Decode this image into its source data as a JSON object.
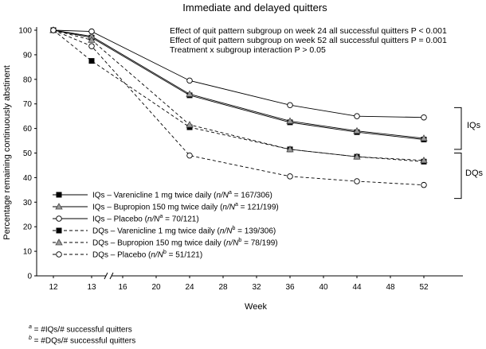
{
  "chart_data": {
    "type": "line",
    "title": "Immediate and delayed quitters",
    "xlabel": "Week",
    "ylabel": "Percentage remaining continuously abstinent",
    "ylim": [
      0,
      100
    ],
    "yticks": [
      0,
      10,
      20,
      30,
      40,
      50,
      60,
      70,
      80,
      90,
      100
    ],
    "xticks": [
      12,
      13,
      16,
      20,
      24,
      28,
      32,
      36,
      40,
      44,
      48,
      52
    ],
    "axis_break": "between 13 and 16",
    "series": [
      {
        "name": "IQs – Varenicline 1 mg twice daily",
        "n_text": "n/N",
        "n_sup": "a",
        "n_value": " = 167/306",
        "marker": "square-filled",
        "dashed": false,
        "x": [
          12,
          13,
          24,
          36,
          44,
          52
        ],
        "values": [
          100,
          97,
          73.5,
          62.5,
          58.5,
          55.5
        ]
      },
      {
        "name": "IQs – Bupropion 150 mg twice daily",
        "n_text": "n/N",
        "n_sup": "a",
        "n_value": " = 121/199",
        "marker": "triangle-gray",
        "dashed": false,
        "x": [
          12,
          13,
          24,
          36,
          44,
          52
        ],
        "values": [
          100,
          97.5,
          74,
          63,
          59,
          56
        ]
      },
      {
        "name": "IQs – Placebo",
        "n_text": "n/N",
        "n_sup": "a",
        "n_value": " = 70/121",
        "marker": "circle-open",
        "dashed": false,
        "x": [
          12,
          13,
          24,
          36,
          44,
          52
        ],
        "values": [
          100,
          99.5,
          79.5,
          69.5,
          65,
          64.5
        ]
      },
      {
        "name": "DQs – Varenicline 1 mg twice daily",
        "n_text": "n/N",
        "n_sup": "b",
        "n_value": " = 139/306",
        "marker": "square-filled",
        "dashed": true,
        "x": [
          12,
          13,
          24,
          36,
          44,
          52
        ],
        "values": [
          100,
          87.5,
          60.5,
          51.5,
          48.5,
          46.5
        ]
      },
      {
        "name": "DQs – Bupropion 150 mg twice daily",
        "n_text": "n/N",
        "n_sup": "b",
        "n_value": " = 78/199",
        "marker": "triangle-gray",
        "dashed": true,
        "x": [
          12,
          13,
          24,
          36,
          44,
          52
        ],
        "values": [
          100,
          96,
          61.5,
          51.5,
          48.5,
          47
        ]
      },
      {
        "name": "DQs – Placebo",
        "n_text": "n/N",
        "n_sup": "b",
        "n_value": " = 51/121",
        "marker": "circle-open",
        "dashed": true,
        "x": [
          12,
          13,
          24,
          36,
          44,
          52
        ],
        "values": [
          100,
          93.5,
          49,
          40.5,
          38.5,
          37
        ]
      }
    ],
    "annotations": [
      "Effect of quit pattern subgroup on week 24 all successful quitters P < 0.001",
      "Effect of quit pattern subgroup on week 52 all successful quitters P = 0.001",
      "Treatment x subgroup interaction P > 0.05"
    ],
    "brackets": [
      "IQs",
      "DQs"
    ],
    "footnotes": [
      {
        "sup": "a",
        "text": " = #IQs/# successful quitters"
      },
      {
        "sup": "b",
        "text": " = #DQs/# successful quitters"
      }
    ]
  }
}
